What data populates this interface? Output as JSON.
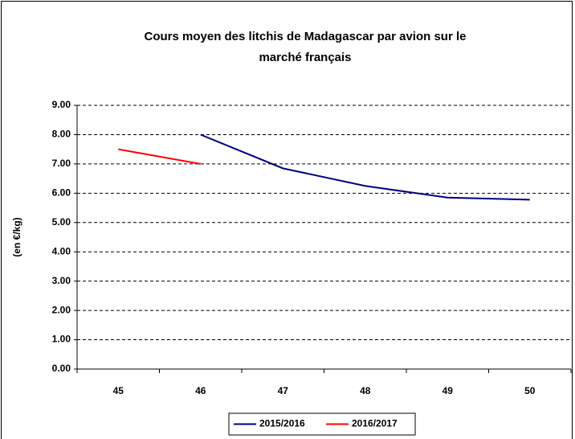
{
  "chart_data": {
    "type": "line",
    "title": [
      "Cours moyen des litchis de Madagascar par avion sur le",
      "marché français"
    ],
    "y_label": "(en €/kg)",
    "categories": [
      "45",
      "46",
      "47",
      "48",
      "49",
      "50"
    ],
    "series": [
      {
        "name": "2015/2016",
        "color": "#000080",
        "values": [
          null,
          8.0,
          6.85,
          6.25,
          5.85,
          5.78
        ]
      },
      {
        "name": "2016/2017",
        "color": "#ff0000",
        "values": [
          7.5,
          7.0,
          null,
          null,
          null,
          null
        ]
      }
    ],
    "ylim": [
      0,
      9
    ],
    "yticks": [
      {
        "value": 0,
        "label": "0.00"
      },
      {
        "value": 1,
        "label": "1.00"
      },
      {
        "value": 2,
        "label": "2.00"
      },
      {
        "value": 3,
        "label": "3.00"
      },
      {
        "value": 4,
        "label": "4.00"
      },
      {
        "value": 5,
        "label": "5.00"
      },
      {
        "value": 6,
        "label": "6.00"
      },
      {
        "value": 7,
        "label": "7.00"
      },
      {
        "value": 8,
        "label": "8.00"
      },
      {
        "value": 9,
        "label": "9.00"
      }
    ],
    "grid": true,
    "legend": "bottom"
  }
}
